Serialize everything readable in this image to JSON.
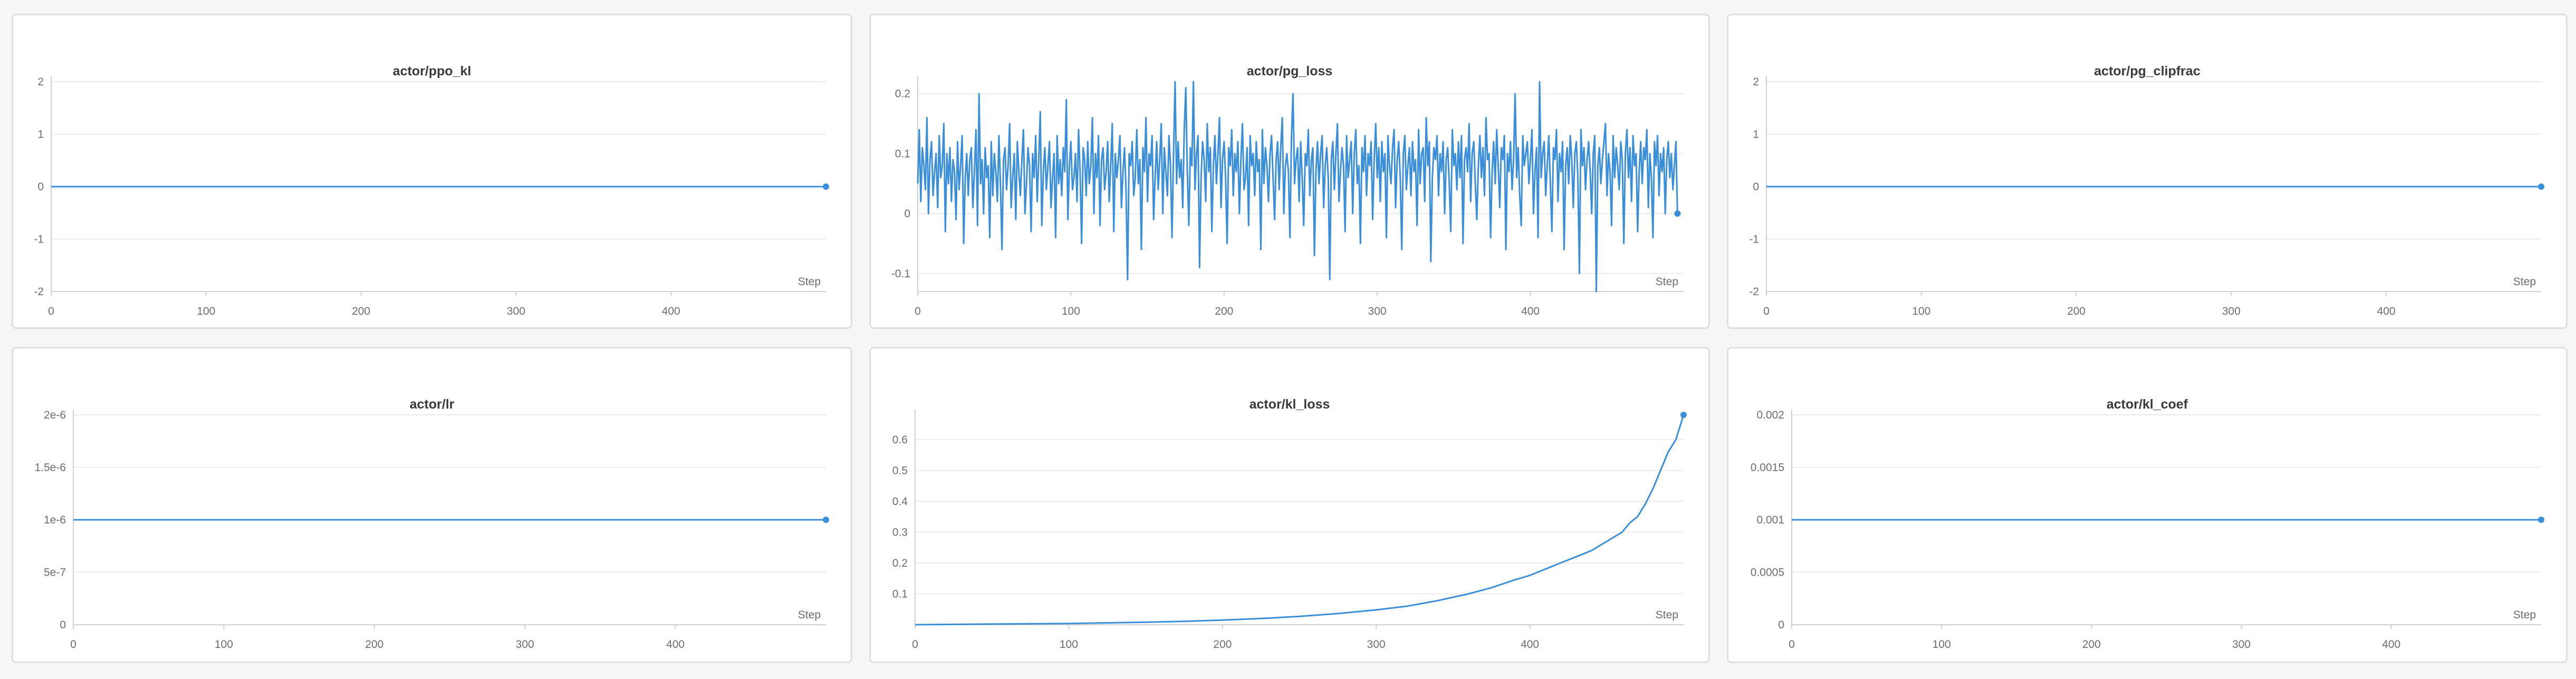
{
  "colors": {
    "line": "#3b8fd9",
    "grid": "#ececef",
    "axis": "#cfcfd4",
    "text": "#6c6c72"
  },
  "xlabel": "Step",
  "chart_data": [
    {
      "type": "line",
      "title": "actor/ppo_kl",
      "xlabel": "Step",
      "xlim": [
        0,
        500
      ],
      "ylim": [
        -2,
        2
      ],
      "yticks": [
        "2",
        "1",
        "0",
        "-1",
        "-2"
      ],
      "ytick_values": [
        2,
        1,
        0,
        -1,
        -2
      ],
      "xticks": [
        "0",
        "100",
        "200",
        "300",
        "400"
      ],
      "xtick_values": [
        0,
        100,
        200,
        300,
        400
      ],
      "grid": true,
      "series": [
        {
          "x": [
            0,
            500
          ],
          "y": [
            0,
            0
          ]
        }
      ]
    },
    {
      "type": "line",
      "title": "actor/pg_loss",
      "xlabel": "Step",
      "xlim": [
        0,
        500
      ],
      "ylim": [
        -0.13,
        0.22
      ],
      "yticks": [
        "0.2",
        "0.1",
        "0",
        "-0.1"
      ],
      "ytick_values": [
        0.2,
        0.1,
        0,
        -0.1
      ],
      "xticks": [
        "0",
        "100",
        "200",
        "300",
        "400"
      ],
      "xtick_values": [
        0,
        100,
        200,
        300,
        400
      ],
      "grid": true,
      "series": [
        {
          "x_start": 0,
          "x_step": 1,
          "y": [
            0.05,
            0.14,
            0.02,
            0.11,
            0.08,
            0.04,
            0.16,
            0.0,
            0.09,
            0.12,
            0.03,
            0.07,
            0.1,
            0.01,
            0.13,
            0.06,
            0.08,
            0.15,
            -0.03,
            0.1,
            0.05,
            0.11,
            0.02,
            0.09,
            0.07,
            -0.01,
            0.12,
            0.04,
            0.08,
            0.13,
            -0.05,
            0.06,
            0.1,
            0.03,
            0.09,
            0.11,
            0.01,
            0.07,
            0.14,
            -0.02,
            0.2,
            0.05,
            0.09,
            0.0,
            0.11,
            0.06,
            0.08,
            -0.04,
            0.12,
            0.03,
            0.1,
            0.07,
            0.02,
            0.13,
            0.05,
            -0.06,
            0.09,
            0.11,
            0.04,
            0.08,
            0.15,
            0.01,
            0.06,
            0.1,
            -0.01,
            0.12,
            0.07,
            0.03,
            0.09,
            0.14,
            0.0,
            0.05,
            0.11,
            0.08,
            -0.03,
            0.1,
            0.06,
            0.13,
            0.02,
            0.09,
            0.17,
            -0.02,
            0.07,
            0.11,
            0.04,
            0.08,
            0.12,
            0.01,
            0.06,
            0.1,
            -0.04,
            0.13,
            0.05,
            0.09,
            0.03,
            0.11,
            0.07,
            0.19,
            -0.01,
            0.08,
            0.12,
            0.04,
            0.06,
            0.1,
            0.02,
            0.14,
            0.07,
            -0.05,
            0.11,
            0.09,
            0.03,
            0.12,
            0.05,
            0.08,
            0.16,
            0.0,
            0.1,
            0.06,
            0.13,
            -0.02,
            0.09,
            0.11,
            0.04,
            0.07,
            0.12,
            0.02,
            0.08,
            0.15,
            -0.03,
            0.1,
            0.06,
            0.09,
            0.13,
            0.01,
            0.07,
            0.11,
            0.04,
            -0.11,
            0.1,
            0.08,
            0.12,
            0.03,
            0.06,
            0.14,
            0.05,
            0.09,
            -0.06,
            0.11,
            0.07,
            0.16,
            0.02,
            0.1,
            0.08,
            0.13,
            -0.01,
            0.06,
            0.12,
            0.04,
            0.09,
            0.15,
            0.0,
            0.11,
            0.07,
            0.03,
            0.13,
            0.08,
            -0.04,
            0.1,
            0.22,
            0.05,
            0.12,
            0.06,
            0.09,
            0.01,
            0.14,
            0.21,
            0.07,
            -0.02,
            0.11,
            0.08,
            0.22,
            0.04,
            0.1,
            0.13,
            -0.09,
            0.06,
            0.12,
            0.09,
            0.02,
            0.15,
            0.07,
            0.11,
            -0.03,
            0.08,
            0.13,
            0.05,
            0.1,
            0.16,
            0.01,
            0.09,
            0.12,
            0.06,
            -0.05,
            0.11,
            0.08,
            0.14,
            0.03,
            0.1,
            0.07,
            0.12,
            0.0,
            0.09,
            0.15,
            0.04,
            0.06,
            0.11,
            -0.02,
            0.13,
            0.08,
            0.1,
            0.03,
            0.12,
            0.07,
            0.09,
            -0.06,
            0.14,
            0.05,
            0.11,
            0.08,
            0.02,
            0.1,
            0.13,
            0.06,
            -0.01,
            0.09,
            0.12,
            0.04,
            0.11,
            0.16,
            0.0,
            0.08,
            0.1,
            0.07,
            -0.04,
            0.13,
            0.2,
            0.05,
            0.09,
            0.11,
            0.02,
            0.12,
            0.06,
            -0.02,
            0.1,
            0.08,
            0.14,
            0.03,
            0.09,
            0.11,
            -0.07,
            0.07,
            0.12,
            0.05,
            0.1,
            0.13,
            0.01,
            0.08,
            0.11,
            0.06,
            -0.11,
            0.09,
            0.12,
            0.04,
            0.1,
            0.15,
            0.02,
            0.07,
            0.11,
            0.08,
            -0.03,
            0.13,
            0.06,
            0.09,
            0.12,
            0.0,
            0.1,
            0.14,
            0.05,
            0.08,
            -0.05,
            0.11,
            0.07,
            0.13,
            0.03,
            0.1,
            0.08,
            0.12,
            -0.01,
            0.09,
            0.15,
            0.06,
            0.11,
            0.02,
            0.12,
            0.07,
            0.1,
            -0.04,
            0.13,
            0.08,
            0.05,
            0.11,
            0.14,
            0.01,
            0.09,
            0.12,
            0.06,
            -0.06,
            0.1,
            0.13,
            0.04,
            0.08,
            0.11,
            0.03,
            0.12,
            0.07,
            0.09,
            -0.02,
            0.14,
            0.05,
            0.1,
            0.11,
            0.02,
            0.16,
            0.08,
            0.12,
            -0.08,
            0.06,
            0.11,
            0.09,
            0.13,
            0.03,
            0.1,
            0.07,
            0.12,
            0.0,
            0.09,
            0.11,
            0.05,
            -0.03,
            0.14,
            0.08,
            0.1,
            0.04,
            0.12,
            0.06,
            0.13,
            -0.05,
            0.09,
            0.11,
            0.07,
            0.15,
            0.02,
            0.1,
            0.12,
            0.05,
            -0.01,
            0.08,
            0.13,
            0.06,
            0.11,
            0.03,
            0.16,
            0.09,
            0.1,
            -0.04,
            0.07,
            0.12,
            0.05,
            0.14,
            0.08,
            0.01,
            0.11,
            0.09,
            0.13,
            -0.06,
            0.1,
            0.07,
            0.12,
            0.04,
            0.09,
            0.2,
            0.06,
            0.11,
            0.03,
            -0.02,
            0.13,
            0.08,
            0.1,
            0.12,
            0.05,
            0.09,
            0.14,
            0.0,
            0.07,
            0.11,
            -0.04,
            0.22,
            0.06,
            0.1,
            0.12,
            0.03,
            0.08,
            0.13,
            0.05,
            -0.03,
            0.11,
            0.09,
            0.14,
            0.02,
            0.1,
            0.07,
            0.12,
            -0.06,
            0.08,
            0.11,
            0.05,
            0.13,
            0.09,
            0.01,
            0.1,
            0.12,
            0.06,
            -0.1,
            0.14,
            0.08,
            0.11,
            0.04,
            0.09,
            0.12,
            0.07,
            0.0,
            0.1,
            0.13,
            -0.14,
            0.08,
            0.11,
            0.05,
            0.09,
            0.12,
            0.15,
            0.03,
            0.1,
            0.07,
            -0.02,
            0.13,
            0.06,
            0.11,
            0.08,
            0.04,
            0.12,
            0.09,
            -0.05,
            0.1,
            0.14,
            0.06,
            0.11,
            0.02,
            0.13,
            0.08,
            0.1,
            -0.03,
            0.07,
            0.12,
            0.05,
            0.11,
            0.09,
            0.14,
            0.01,
            0.1,
            0.06,
            -0.04,
            0.12,
            0.08,
            0.13,
            0.03,
            0.1,
            0.07,
            0.11,
            0.0,
            0.09,
            0.12,
            0.06,
            0.1,
            0.04,
            0.08,
            0.12,
            0.0
          ]
        }
      ]
    },
    {
      "type": "line",
      "title": "actor/pg_clipfrac",
      "xlabel": "Step",
      "xlim": [
        0,
        500
      ],
      "ylim": [
        -2,
        2
      ],
      "yticks": [
        "2",
        "1",
        "0",
        "-1",
        "-2"
      ],
      "ytick_values": [
        2,
        1,
        0,
        -1,
        -2
      ],
      "xticks": [
        "0",
        "100",
        "200",
        "300",
        "400"
      ],
      "xtick_values": [
        0,
        100,
        200,
        300,
        400
      ],
      "grid": true,
      "series": [
        {
          "x": [
            0,
            500
          ],
          "y": [
            0,
            0
          ]
        }
      ]
    },
    {
      "type": "line",
      "title": "actor/lr",
      "xlabel": "Step",
      "xlim": [
        0,
        500
      ],
      "ylim": [
        0,
        2e-06
      ],
      "yticks": [
        "2e-6",
        "1.5e-6",
        "1e-6",
        "5e-7",
        "0"
      ],
      "ytick_values": [
        2e-06,
        1.5e-06,
        1e-06,
        5e-07,
        0
      ],
      "xticks": [
        "0",
        "100",
        "200",
        "300",
        "400"
      ],
      "xtick_values": [
        0,
        100,
        200,
        300,
        400
      ],
      "grid": true,
      "series": [
        {
          "x": [
            0,
            500
          ],
          "y": [
            1e-06,
            1e-06
          ]
        }
      ]
    },
    {
      "type": "line",
      "title": "actor/kl_loss",
      "xlabel": "Step",
      "xlim": [
        0,
        500
      ],
      "ylim": [
        0,
        0.68
      ],
      "yticks": [
        "0.6",
        "0.5",
        "0.4",
        "0.3",
        "0.2",
        "0.1"
      ],
      "ytick_values": [
        0.6,
        0.5,
        0.4,
        0.3,
        0.2,
        0.1
      ],
      "xticks": [
        "0",
        "100",
        "200",
        "300",
        "400"
      ],
      "xtick_values": [
        0,
        100,
        200,
        300,
        400
      ],
      "grid": true,
      "series": [
        {
          "x": [
            0,
            25,
            50,
            75,
            100,
            125,
            150,
            175,
            200,
            225,
            250,
            275,
            300,
            320,
            340,
            360,
            375,
            390,
            400,
            410,
            420,
            430,
            440,
            450,
            460,
            465,
            470,
            475,
            480,
            485,
            490,
            495,
            500
          ],
          "y": [
            0.0,
            0.001,
            0.002,
            0.003,
            0.004,
            0.006,
            0.008,
            0.011,
            0.015,
            0.02,
            0.027,
            0.036,
            0.048,
            0.06,
            0.078,
            0.1,
            0.12,
            0.145,
            0.16,
            0.18,
            0.2,
            0.22,
            0.24,
            0.27,
            0.3,
            0.33,
            0.35,
            0.39,
            0.44,
            0.5,
            0.56,
            0.6,
            0.68
          ]
        }
      ]
    },
    {
      "type": "line",
      "title": "actor/kl_coef",
      "xlabel": "Step",
      "xlim": [
        0,
        500
      ],
      "ylim": [
        0,
        0.002
      ],
      "yticks": [
        "0.002",
        "0.0015",
        "0.001",
        "0.0005",
        "0"
      ],
      "ytick_values": [
        0.002,
        0.0015,
        0.001,
        0.0005,
        0
      ],
      "xticks": [
        "0",
        "100",
        "200",
        "300",
        "400"
      ],
      "xtick_values": [
        0,
        100,
        200,
        300,
        400
      ],
      "grid": true,
      "series": [
        {
          "x": [
            0,
            500
          ],
          "y": [
            0.001,
            0.001
          ]
        }
      ]
    }
  ]
}
